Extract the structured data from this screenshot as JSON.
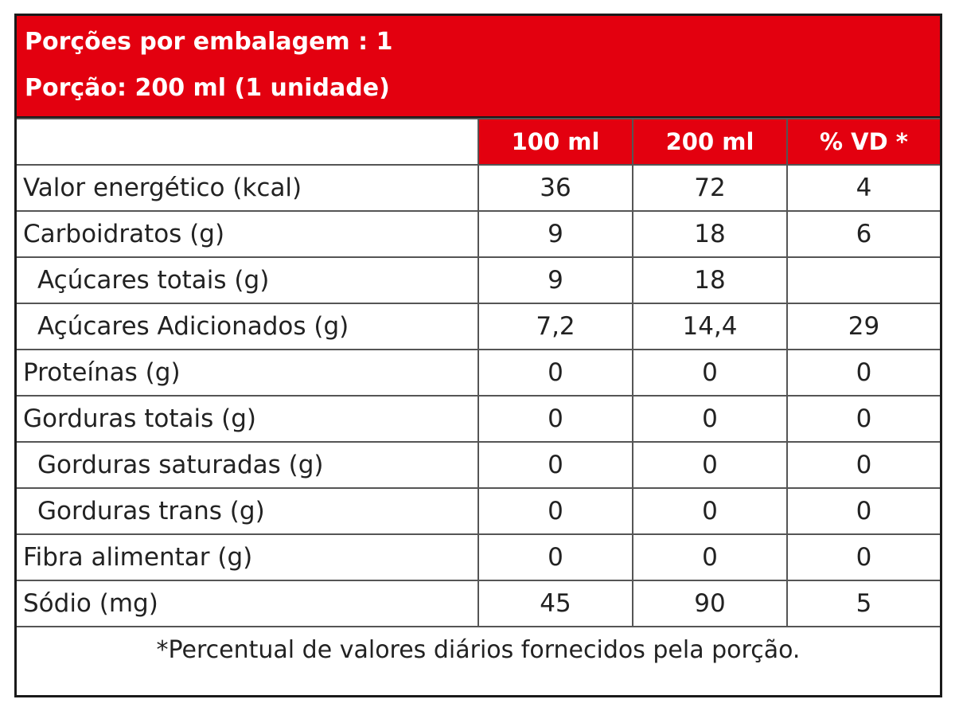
{
  "colors": {
    "accent_red": "#e3000f",
    "border": "#1a1a1a",
    "text": "#222222"
  },
  "header": {
    "servings_per_package": "Porções por embalagem : 1",
    "serving_size": "Porção: 200 ml (1 unidade)"
  },
  "columns": [
    "100 ml",
    "200 ml",
    "% VD *"
  ],
  "rows": [
    {
      "name": "Valor energético (kcal)",
      "indent": false,
      "per100": "36",
      "per200": "72",
      "vd": "4"
    },
    {
      "name": "Carboidratos (g)",
      "indent": false,
      "per100": "9",
      "per200": "18",
      "vd": "6"
    },
    {
      "name": "Açúcares totais (g)",
      "indent": true,
      "per100": "9",
      "per200": "18",
      "vd": ""
    },
    {
      "name": "Açúcares Adicionados (g)",
      "indent": true,
      "per100": "7,2",
      "per200": "14,4",
      "vd": "29"
    },
    {
      "name": "Proteínas (g)",
      "indent": false,
      "per100": "0",
      "per200": "0",
      "vd": "0"
    },
    {
      "name": "Gorduras totais (g)",
      "indent": false,
      "per100": "0",
      "per200": "0",
      "vd": "0"
    },
    {
      "name": "Gorduras saturadas (g)",
      "indent": true,
      "per100": "0",
      "per200": "0",
      "vd": "0"
    },
    {
      "name": "Gorduras trans (g)",
      "indent": true,
      "per100": "0",
      "per200": "0",
      "vd": "0"
    },
    {
      "name": "Fibra alimentar (g)",
      "indent": false,
      "per100": "0",
      "per200": "0",
      "vd": "0"
    },
    {
      "name": "Sódio (mg)",
      "indent": false,
      "per100": "45",
      "per200": "90",
      "vd": "5"
    }
  ],
  "footnote": "*Percentual de valores diários fornecidos pela porção."
}
